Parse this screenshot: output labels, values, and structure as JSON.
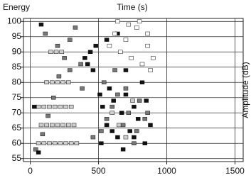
{
  "chart_data": {
    "type": "scatter",
    "energy_label": "Energy",
    "x_label": "Time (s)",
    "y_label": "Amplitude (dB)",
    "xlim": [
      -50,
      1560
    ],
    "xticks": [
      0,
      500,
      1000,
      1500
    ],
    "ylim": [
      54,
      101
    ],
    "yticks": [
      55,
      60,
      65,
      70,
      75,
      80,
      85,
      90,
      95,
      100
    ],
    "grid": true,
    "series": [
      {
        "color": "#cfcfcf",
        "x": [
          60,
          100,
          140,
          180,
          220,
          260,
          300,
          340,
          80,
          120,
          160,
          200,
          240,
          280,
          320,
          60,
          100,
          140,
          180,
          220,
          260,
          300,
          120,
          160,
          200,
          240,
          280,
          150,
          190,
          230,
          600,
          650,
          700,
          750
        ],
        "values": [
          60,
          60,
          60,
          60,
          60,
          60,
          60,
          60,
          66,
          66,
          66,
          66,
          66,
          66,
          66,
          72,
          72,
          72,
          72,
          72,
          72,
          72,
          80,
          80,
          80,
          80,
          80,
          90,
          90,
          90,
          70,
          66,
          62,
          74
        ]
      },
      {
        "color": "#777777",
        "x": [
          40,
          90,
          130,
          170,
          210,
          250,
          290,
          330,
          370,
          110,
          200,
          290,
          380,
          460,
          520,
          560,
          600,
          640,
          680,
          720,
          760,
          800,
          840,
          540,
          620,
          700,
          780,
          860
        ],
        "values": [
          58,
          63,
          69,
          75,
          82,
          88,
          94,
          98,
          86,
          96,
          92,
          84,
          78,
          62,
          64,
          68,
          72,
          76,
          66,
          70,
          60,
          74,
          68,
          80,
          84,
          78,
          64,
          70
        ]
      },
      {
        "color": "#111111",
        "x": [
          30,
          60,
          80,
          400,
          420,
          440,
          460,
          480,
          510,
          530,
          560,
          580,
          610,
          640,
          670,
          700,
          730,
          760,
          790,
          820,
          850,
          880,
          520,
          600,
          680,
          760,
          840,
          700,
          560,
          640
        ],
        "values": [
          72,
          57,
          99,
          88,
          86,
          90,
          84,
          92,
          76,
          72,
          66,
          78,
          74,
          62,
          70,
          76,
          64,
          72,
          68,
          80,
          74,
          66,
          60,
          64,
          58,
          62,
          60,
          84,
          94,
          96
        ]
      },
      {
        "color": "#ffffff",
        "x": [
          580,
          620,
          660,
          700,
          740,
          780,
          820,
          860,
          880,
          900,
          640,
          720,
          800,
          860
        ],
        "values": [
          92,
          96,
          90,
          94,
          88,
          98,
          86,
          92,
          84,
          88,
          100,
          99,
          100,
          96
        ]
      }
    ]
  }
}
